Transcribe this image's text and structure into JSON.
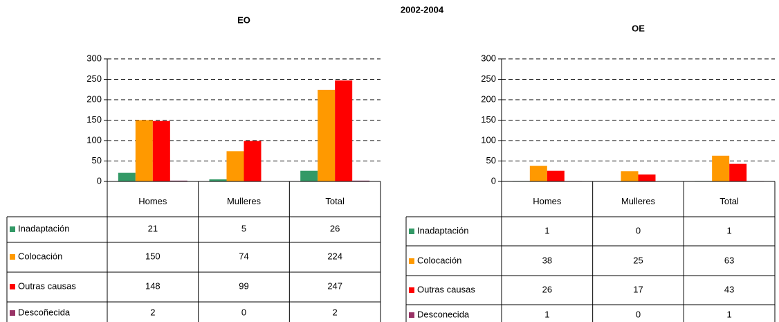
{
  "title": "2002-2004",
  "chart_data": [
    {
      "type": "bar",
      "title": "EO",
      "categories": [
        "Homes",
        "Mulleres",
        "Total"
      ],
      "series": [
        {
          "name": "Inadaptación",
          "color": "#339966",
          "values": [
            21,
            5,
            26
          ]
        },
        {
          "name": "Colocación",
          "color": "#ff9900",
          "values": [
            150,
            74,
            224
          ]
        },
        {
          "name": "Outras causas",
          "color": "#ff0000",
          "values": [
            148,
            99,
            247
          ]
        },
        {
          "name": "Descoñecida",
          "color": "#993366",
          "values": [
            2,
            0,
            2
          ]
        }
      ],
      "ylim": [
        0,
        300
      ],
      "yticks": [
        0,
        50,
        100,
        150,
        200,
        250,
        300
      ],
      "grid": true
    },
    {
      "type": "bar",
      "title": "OE",
      "categories": [
        "Homes",
        "Mulleres",
        "Total"
      ],
      "series": [
        {
          "name": "Inadaptación",
          "color": "#339966",
          "values": [
            1,
            0,
            1
          ]
        },
        {
          "name": "Colocación",
          "color": "#ff9900",
          "values": [
            38,
            25,
            63
          ]
        },
        {
          "name": "Outras causas",
          "color": "#ff0000",
          "values": [
            26,
            17,
            43
          ]
        },
        {
          "name": "Desconecida",
          "color": "#993366",
          "values": [
            1,
            0,
            1
          ]
        }
      ],
      "ylim": [
        0,
        300
      ],
      "yticks": [
        0,
        50,
        100,
        150,
        200,
        250,
        300
      ],
      "grid": true
    }
  ]
}
